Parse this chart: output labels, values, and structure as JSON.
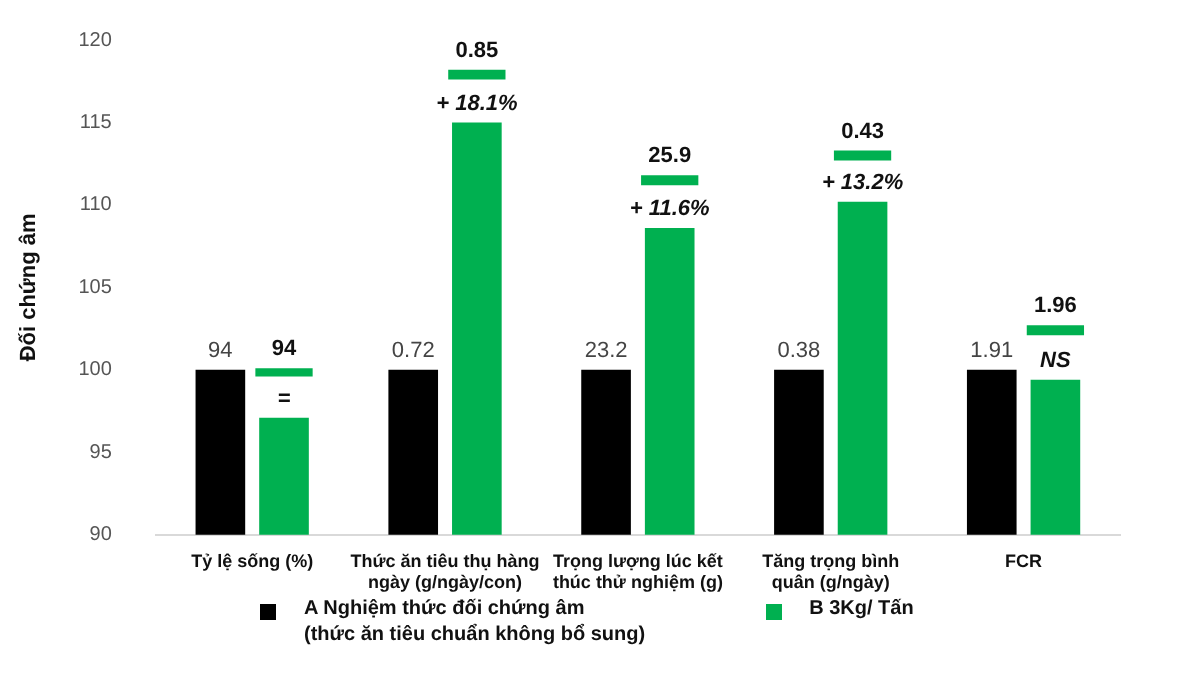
{
  "chart_data": {
    "type": "bar",
    "ylabel": "Đối chứng âm",
    "categories": [
      "Tỷ lệ sống (%)",
      "Thức ăn tiêu thụ hàng\nngày (g/ngày/con)",
      "Trọng lượng lúc kết\nthúc thử nghiệm (g)",
      "Tăng trọng bình\nquân (g/ngày)",
      "FCR"
    ],
    "series": [
      {
        "name": "A Nghiệm thức đối chứng âm\n(thức ăn tiêu chuẩn không bổ sung)",
        "color": "#000000",
        "values": [
          100,
          100,
          100,
          100,
          100
        ]
      },
      {
        "name": "B 3Kg/ Tấn",
        "color": "#00b050",
        "values": [
          97.1,
          115,
          108.6,
          110.2,
          99.4
        ]
      },
      {
        "color": "#00b050",
        "base": [
          99.6,
          117.6,
          111.2,
          112.7,
          102.1
        ],
        "values": [
          0.5,
          0.6,
          0.6,
          0.6,
          0.6
        ]
      }
    ],
    "annotations": [
      {
        "text": "94",
        "x": "Tỷ lệ sống (%)",
        "y": 100
      },
      {
        "text": "94",
        "x": "Tỷ lệ sống (%)",
        "y": 100.1
      },
      {
        "text": "=",
        "x": "Tỷ lệ sống (%)",
        "y": 97.1
      },
      {
        "text": "0.72",
        "x": "Thức ăn tiêu thụ hàng\nngày (g/ngày/con)",
        "y": 100
      },
      {
        "text": "0.85",
        "x": "Thức ăn tiêu thụ hàng\nngày (g/ngày/con)",
        "y": 118.2
      },
      {
        "text": "+ 18.1%",
        "x": "Thức ăn tiêu thụ hàng\nngày (g/ngày/con)",
        "y": 115
      },
      {
        "text": "23.2",
        "x": "Trọng lượng lúc kết\nthúc thử nghiệm (g)",
        "y": 100
      },
      {
        "text": "25.9",
        "x": "Trọng lượng lúc kết\nthúc thử nghiệm (g)",
        "y": 111.8
      },
      {
        "text": "+ 11.6%",
        "x": "Trọng lượng lúc kết\nthúc thử nghiệm (g)",
        "y": 108.6
      },
      {
        "text": "0.38",
        "x": "Tăng trọng bình\nquân (g/ngày)",
        "y": 100
      },
      {
        "text": "0.43",
        "x": "Tăng trọng bình\nquân (g/ngày)",
        "y": 113.3
      },
      {
        "text": "+ 13.2%",
        "x": "Tăng trọng bình\nquân (g/ngày)",
        "y": 110.2
      },
      {
        "text": "1.91",
        "x": "FCR",
        "y": 100
      },
      {
        "text": "1.96",
        "x": "FCR",
        "y": 102.7
      },
      {
        "text": "NS",
        "x": "FCR",
        "y": 99.4
      }
    ],
    "ylim": [
      90,
      120
    ],
    "yticks": [
      90,
      95,
      100,
      105,
      110,
      115,
      120
    ],
    "grid": false,
    "legend": "bottom"
  }
}
